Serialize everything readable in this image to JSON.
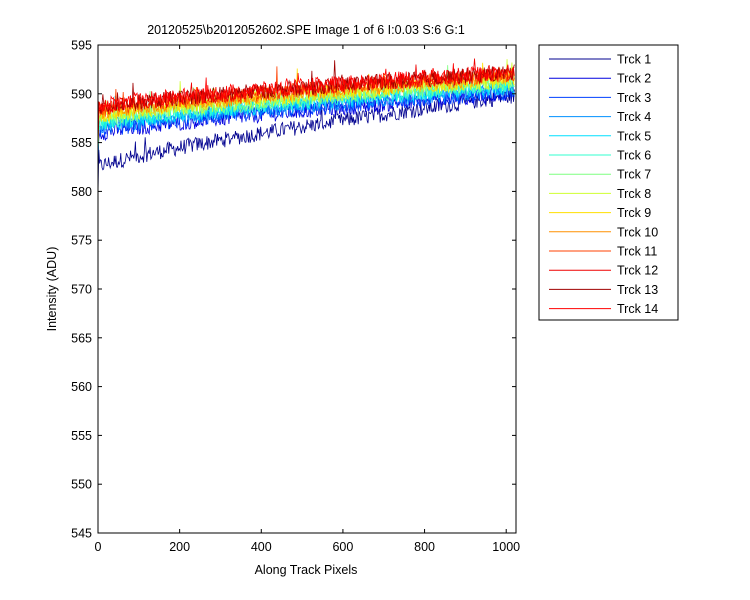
{
  "chart_data": {
    "type": "line",
    "title": "20120525\\b2012052602.SPE  Image 1 of 6  I:0.03  S:6  G:1",
    "xlabel": "Along Track Pixels",
    "ylabel": "Intensity (ADU)",
    "xlim": [
      0,
      1024
    ],
    "ylim": [
      545,
      595
    ],
    "xticks": [
      0,
      200,
      400,
      600,
      800,
      1000
    ],
    "yticks": [
      545,
      550,
      555,
      560,
      565,
      570,
      575,
      580,
      585,
      590,
      595
    ],
    "grid": false,
    "legend_position": "outside-right",
    "series": [
      {
        "name": "Trck 1",
        "color": "#00008f",
        "start": 582.5,
        "end": 589.8
      },
      {
        "name": "Trck 2",
        "color": "#0000df",
        "start": 585.9,
        "end": 590.0
      },
      {
        "name": "Trck 3",
        "color": "#0040ff",
        "start": 586.2,
        "end": 590.2
      },
      {
        "name": "Trck 4",
        "color": "#0090ff",
        "start": 586.5,
        "end": 590.5
      },
      {
        "name": "Trck 5",
        "color": "#00dfff",
        "start": 586.8,
        "end": 590.8
      },
      {
        "name": "Trck 6",
        "color": "#30ffcf",
        "start": 587.0,
        "end": 591.0
      },
      {
        "name": "Trck 7",
        "color": "#7fff80",
        "start": 587.3,
        "end": 591.2
      },
      {
        "name": "Trck 8",
        "color": "#cfff30",
        "start": 587.5,
        "end": 591.4
      },
      {
        "name": "Trck 9",
        "color": "#ffdf00",
        "start": 587.8,
        "end": 591.6
      },
      {
        "name": "Trck 10",
        "color": "#ff9000",
        "start": 588.0,
        "end": 591.8
      },
      {
        "name": "Trck 11",
        "color": "#ff4000",
        "start": 588.3,
        "end": 592.0
      },
      {
        "name": "Trck 12",
        "color": "#ef0000",
        "start": 588.5,
        "end": 592.1
      },
      {
        "name": "Trck 13",
        "color": "#9f0000",
        "start": 588.6,
        "end": 592.2
      },
      {
        "name": "Trck 14",
        "color": "#ff0000",
        "start": 588.8,
        "end": 592.3
      }
    ]
  }
}
